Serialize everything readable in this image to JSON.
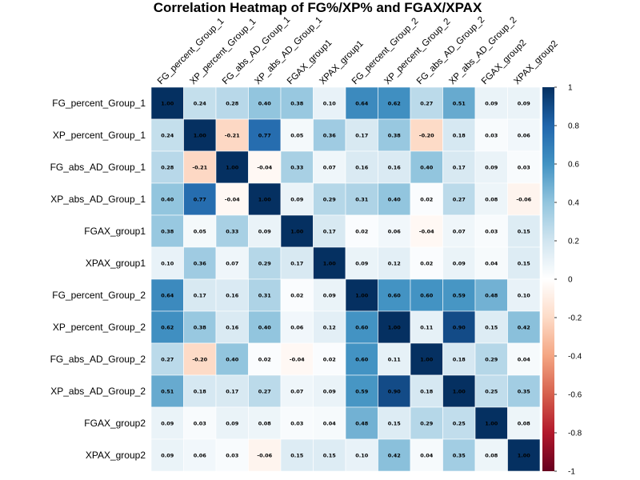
{
  "chart_data": {
    "type": "heatmap",
    "title": "Correlation Heatmap of FG%/XP% and FGAX/XPAX",
    "labels": [
      "FG_percent_Group_1",
      "XP_percent_Group_1",
      "FG_abs_AD_Group_1",
      "XP_abs_AD_Group_1",
      "FGAX_group1",
      "XPAX_group1",
      "FG_percent_Group_2",
      "XP_percent_Group_2",
      "FG_abs_AD_Group_2",
      "XP_abs_AD_Group_2",
      "FGAX_group2",
      "XPAX_group2"
    ],
    "matrix": [
      [
        1.0,
        0.24,
        0.28,
        0.4,
        0.38,
        0.1,
        0.64,
        0.62,
        0.27,
        0.51,
        0.09,
        0.09
      ],
      [
        0.24,
        1.0,
        -0.21,
        0.77,
        0.05,
        0.36,
        0.17,
        0.38,
        -0.2,
        0.18,
        0.03,
        0.06
      ],
      [
        0.28,
        -0.21,
        1.0,
        -0.04,
        0.33,
        0.07,
        0.16,
        0.16,
        0.4,
        0.17,
        0.09,
        0.03
      ],
      [
        0.4,
        0.77,
        -0.04,
        1.0,
        0.09,
        0.29,
        0.31,
        0.4,
        0.02,
        0.27,
        0.08,
        -0.06
      ],
      [
        0.38,
        0.05,
        0.33,
        0.09,
        1.0,
        0.17,
        0.02,
        0.06,
        -0.04,
        0.07,
        0.03,
        0.15
      ],
      [
        0.1,
        0.36,
        0.07,
        0.29,
        0.17,
        1.0,
        0.09,
        0.12,
        0.02,
        0.09,
        0.04,
        0.15
      ],
      [
        0.64,
        0.17,
        0.16,
        0.31,
        0.02,
        0.09,
        1.0,
        0.6,
        0.6,
        0.59,
        0.48,
        0.1
      ],
      [
        0.62,
        0.38,
        0.16,
        0.4,
        0.06,
        0.12,
        0.6,
        1.0,
        0.11,
        0.9,
        0.15,
        0.42
      ],
      [
        0.27,
        -0.2,
        0.4,
        0.02,
        -0.04,
        0.02,
        0.6,
        0.11,
        1.0,
        0.18,
        0.29,
        0.04
      ],
      [
        0.51,
        0.18,
        0.17,
        0.27,
        0.07,
        0.09,
        0.59,
        0.9,
        0.18,
        1.0,
        0.25,
        0.35
      ],
      [
        0.09,
        0.03,
        0.09,
        0.08,
        0.03,
        0.04,
        0.48,
        0.15,
        0.29,
        0.25,
        1.0,
        0.08
      ],
      [
        0.09,
        0.06,
        0.03,
        -0.06,
        0.15,
        0.15,
        0.1,
        0.42,
        0.04,
        0.35,
        0.08,
        1.0
      ]
    ],
    "value_range": [
      -1,
      1
    ],
    "colorbar": {
      "ticks": [
        1,
        0.8,
        0.6,
        0.4,
        0.2,
        0,
        -0.2,
        -0.4,
        -0.6,
        -0.8,
        -1
      ],
      "tick_labels": [
        "1",
        "0.8",
        "0.6",
        "0.4",
        "0.2",
        "0",
        "-0.2",
        "-0.4",
        "-0.6",
        "-0.8",
        "-1"
      ],
      "placement": "right"
    },
    "colors": {
      "negative_end": "#67001f",
      "neutral": "#ffffff",
      "positive_end": "#053061"
    },
    "grid": true
  }
}
